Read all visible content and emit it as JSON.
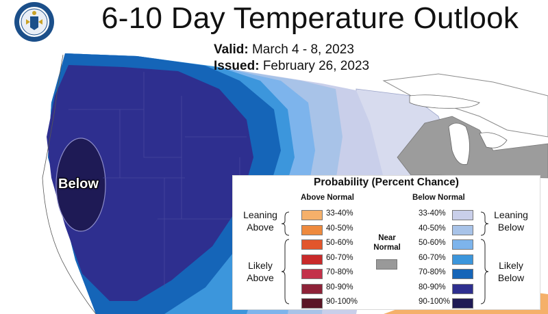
{
  "title": "6-10 Day Temperature Outlook",
  "valid_label": "Valid:",
  "valid_value": "March 4 - 8, 2023",
  "issued_label": "Issued:",
  "issued_value": "February 26, 2023",
  "seal_text": "DEPARTMENT OF COMMERCE · UNITED STATES OF AMERICA",
  "map_label": "Below",
  "legend": {
    "title": "Probability (Percent Chance)",
    "above_header": "Above Normal",
    "below_header": "Below Normal",
    "near_line1": "Near",
    "near_line2": "Normal",
    "near_color": "#999999",
    "leaning_above_1": "Leaning",
    "leaning_above_2": "Above",
    "likely_above_1": "Likely",
    "likely_above_2": "Above",
    "leaning_below_1": "Leaning",
    "leaning_below_2": "Below",
    "likely_below_1": "Likely",
    "likely_below_2": "Below",
    "above": [
      {
        "range": "33-40%",
        "color": "#F5B06A"
      },
      {
        "range": "40-50%",
        "color": "#EE8A3E"
      },
      {
        "range": "50-60%",
        "color": "#E2562C"
      },
      {
        "range": "60-70%",
        "color": "#C92A2A"
      },
      {
        "range": "70-80%",
        "color": "#C3324A"
      },
      {
        "range": "80-90%",
        "color": "#8E2238"
      },
      {
        "range": "90-100%",
        "color": "#5A1526"
      }
    ],
    "below": [
      {
        "range": "33-40%",
        "color": "#C9CFEA"
      },
      {
        "range": "40-50%",
        "color": "#A8C3E8"
      },
      {
        "range": "50-60%",
        "color": "#7DB4EC"
      },
      {
        "range": "60-70%",
        "color": "#3C96DC"
      },
      {
        "range": "70-80%",
        "color": "#1565B8"
      },
      {
        "range": "80-90%",
        "color": "#2E2F8F"
      },
      {
        "range": "90-100%",
        "color": "#1E1A55"
      }
    ]
  }
}
